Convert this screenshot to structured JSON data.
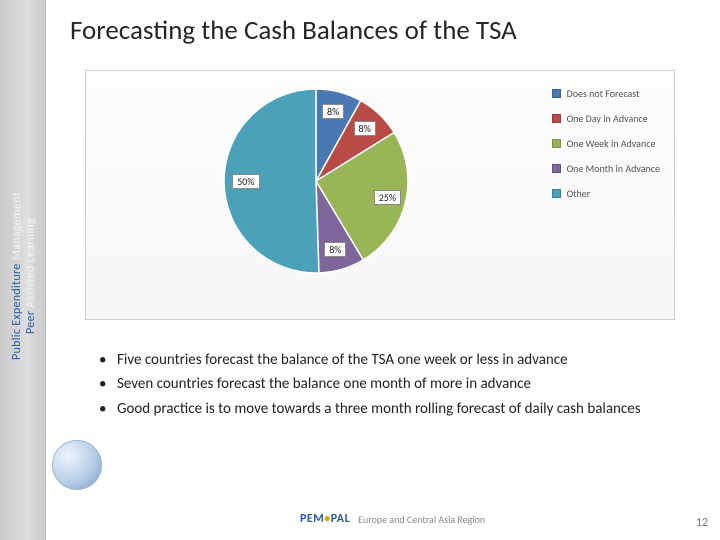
{
  "sidebar": {
    "line1a": "Public Expenditure",
    "line1b": "Management",
    "line2a": "Peer",
    "line2b": "Assisted",
    "line2c": "Learning"
  },
  "title": "Forecasting the Cash Balances of the TSA",
  "chart": {
    "type": "pie",
    "background_color": "#f9f9f9",
    "border_color": "#cfcfcf",
    "slices": [
      {
        "label": "Does not Forecast",
        "value": 8,
        "display": "8%",
        "color": "#4a78b2"
      },
      {
        "label": "One Day in Advance",
        "value": 8,
        "display": "8%",
        "color": "#b94b46"
      },
      {
        "label": "One Week in Advance",
        "value": 25,
        "display": "25%",
        "color": "#9ab558"
      },
      {
        "label": "One Month in Advance",
        "value": 8,
        "display": "8%",
        "color": "#7e659c"
      },
      {
        "label": "Other",
        "value": 50,
        "display": "50%",
        "color": "#4ba2b8"
      }
    ],
    "label_fontsize": 10,
    "legend_fontsize": 10,
    "legend_position": "right"
  },
  "bullets": [
    "Five countries forecast the balance of the TSA one week or less in advance",
    "Seven countries forecast the balance one month of more in advance",
    "Good practice is to move towards a three month rolling forecast of daily cash balances"
  ],
  "footer": {
    "brand": "PEMPAL",
    "sub": "Europe and Central Asia Region"
  },
  "page_number": "12"
}
